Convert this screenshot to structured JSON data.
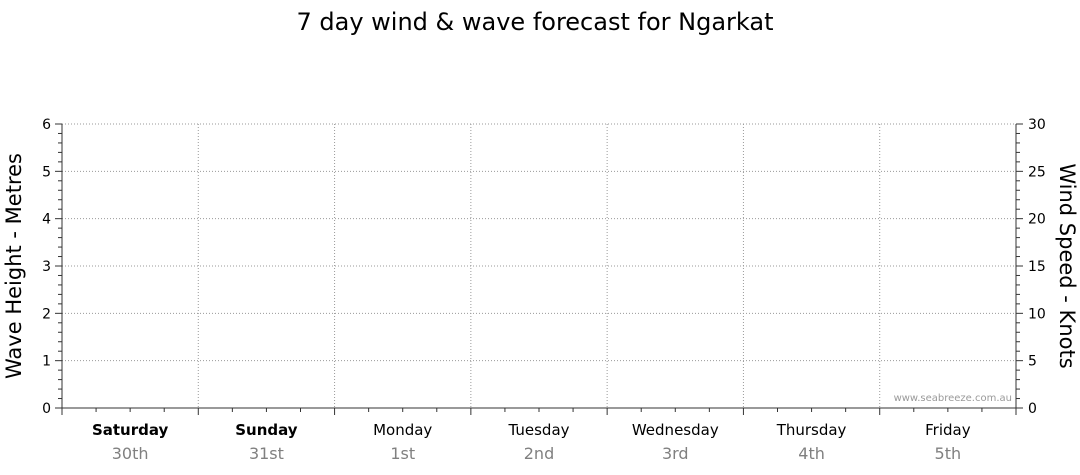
{
  "chart_data": {
    "type": "line",
    "title": "7 day wind & wave forecast for Ngarkat",
    "ylabel_left": "Wave Height - Metres",
    "ylabel_right": "Wind Speed - Knots",
    "ylim_left": [
      0,
      6
    ],
    "ylim_right": [
      0,
      30
    ],
    "yticks_left": [
      0,
      1,
      2,
      3,
      4,
      5,
      6
    ],
    "yticks_right": [
      0,
      5,
      10,
      15,
      20,
      25,
      30
    ],
    "grid": true,
    "days": [
      {
        "name": "Saturday",
        "date": "30th",
        "bold": true
      },
      {
        "name": "Sunday",
        "date": "31st",
        "bold": true
      },
      {
        "name": "Monday",
        "date": "1st",
        "bold": false
      },
      {
        "name": "Tuesday",
        "date": "2nd",
        "bold": false
      },
      {
        "name": "Wednesday",
        "date": "3rd",
        "bold": false
      },
      {
        "name": "Thursday",
        "date": "4th",
        "bold": false
      },
      {
        "name": "Friday",
        "date": "5th",
        "bold": false
      }
    ],
    "series": [],
    "watermark": "www.seabreeze.com.au"
  }
}
